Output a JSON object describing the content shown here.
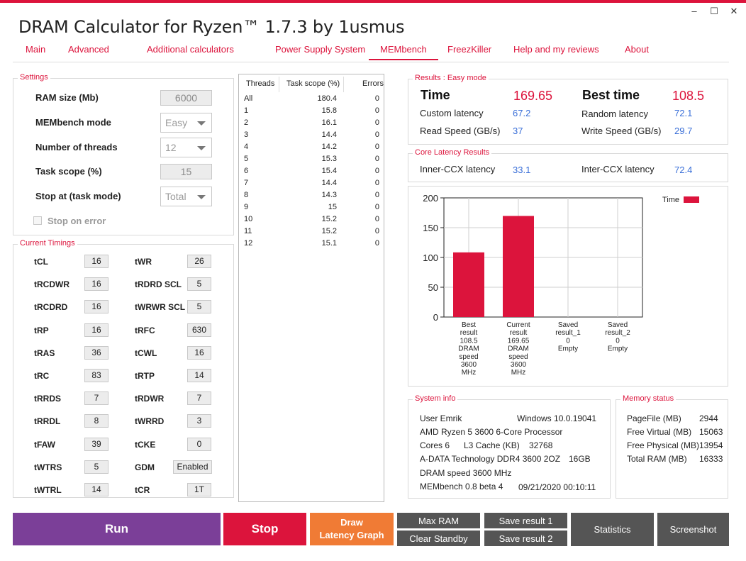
{
  "window": {
    "title": "DRAM Calculator for Ryzen™ 1.7.3 by 1usmus",
    "minimize_glyph": "–",
    "maximize_glyph": "☐",
    "close_glyph": "✕"
  },
  "colors": {
    "accent": "#dc143c",
    "value_blue": "#3a6fd8",
    "run": "#7b3f98",
    "stop": "#dc143c",
    "draw": "#f07b35",
    "dark_button": "#555555"
  },
  "tabs": [
    {
      "label": "Main"
    },
    {
      "label": "Advanced"
    },
    {
      "label": "Additional calculators"
    },
    {
      "label": "Power Supply System"
    },
    {
      "label": "MEMbench"
    },
    {
      "label": "FreezKiller"
    },
    {
      "label": "Help and my reviews"
    },
    {
      "label": "About"
    }
  ],
  "settings": {
    "title": "Settings",
    "ram_size_label": "RAM size (Mb)",
    "ram_size_value": "6000",
    "mode_label": "MEMbench mode",
    "mode_value": "Easy",
    "threads_label": "Number of threads",
    "threads_value": "12",
    "task_scope_label": "Task scope (%)",
    "task_scope_value": "15",
    "stop_at_label": "Stop at (task mode)",
    "stop_at_value": "Total",
    "stop_on_error_label": "Stop on error"
  },
  "timings": {
    "title": "Current Timings",
    "left": [
      {
        "name": "tCL",
        "value": "16"
      },
      {
        "name": "tRCDWR",
        "value": "16"
      },
      {
        "name": "tRCDRD",
        "value": "16"
      },
      {
        "name": "tRP",
        "value": "16"
      },
      {
        "name": "tRAS",
        "value": "36"
      },
      {
        "name": "tRC",
        "value": "83"
      },
      {
        "name": "tRRDS",
        "value": "7"
      },
      {
        "name": "tRRDL",
        "value": "8"
      },
      {
        "name": "tFAW",
        "value": "39"
      },
      {
        "name": "tWTRS",
        "value": "5"
      },
      {
        "name": "tWTRL",
        "value": "14"
      }
    ],
    "right": [
      {
        "name": "tWR",
        "value": "26"
      },
      {
        "name": "tRDRD SCL",
        "value": "5"
      },
      {
        "name": "tWRWR SCL",
        "value": "5"
      },
      {
        "name": "tRFC",
        "value": "630"
      },
      {
        "name": "tCWL",
        "value": "16"
      },
      {
        "name": "tRTP",
        "value": "14"
      },
      {
        "name": "tRDWR",
        "value": "7"
      },
      {
        "name": "tWRRD",
        "value": "3"
      },
      {
        "name": "tCKE",
        "value": "0"
      },
      {
        "name": "GDM",
        "value": "Enabled"
      },
      {
        "name": "tCR",
        "value": "1T"
      }
    ]
  },
  "threads_table": {
    "headers": [
      "Threads",
      "Task scope (%)",
      "Errors"
    ],
    "rows": [
      [
        "All",
        "180.4",
        "0"
      ],
      [
        "1",
        "15.8",
        "0"
      ],
      [
        "2",
        "16.1",
        "0"
      ],
      [
        "3",
        "14.4",
        "0"
      ],
      [
        "4",
        "14.2",
        "0"
      ],
      [
        "5",
        "15.3",
        "0"
      ],
      [
        "6",
        "15.4",
        "0"
      ],
      [
        "7",
        "14.4",
        "0"
      ],
      [
        "8",
        "14.3",
        "0"
      ],
      [
        "9",
        "15",
        "0"
      ],
      [
        "10",
        "15.2",
        "0"
      ],
      [
        "11",
        "15.2",
        "0"
      ],
      [
        "12",
        "15.1",
        "0"
      ]
    ]
  },
  "results": {
    "title": "Results : Easy mode",
    "time_label": "Time",
    "time_value": "169.65",
    "best_time_label": "Best time",
    "best_time_value": "108.5",
    "custom_latency_label": "Custom latency",
    "custom_latency_value": "67.2",
    "random_latency_label": "Random latency",
    "random_latency_value": "72.1",
    "read_speed_label": "Read Speed (GB/s)",
    "read_speed_value": "37",
    "write_speed_label": "Write Speed (GB/s)",
    "write_speed_value": "29.7"
  },
  "core_latency": {
    "title": "Core Latency Results",
    "inner_label": "Inner-CCX latency",
    "inner_value": "33.1",
    "inter_label": "Inter-CCX latency",
    "inter_value": "72.4"
  },
  "chart_data": {
    "type": "bar",
    "title": "",
    "xlabel": "",
    "ylabel": "",
    "ylim": [
      0,
      200
    ],
    "yticks": [
      "200",
      "150",
      "100",
      "50",
      "0"
    ],
    "grid": true,
    "legend_position": "top-right",
    "series": [
      {
        "name": "Time",
        "color": "#dc143c",
        "values": [
          108.5,
          169.65,
          0,
          0
        ]
      }
    ],
    "categories": [
      [
        "Best",
        "result",
        "108.5",
        "DRAM",
        "speed",
        "3600",
        "MHz"
      ],
      [
        "Current",
        "result",
        "169.65",
        "DRAM",
        "speed",
        "3600",
        "MHz"
      ],
      [
        "Saved",
        "result_1",
        "0",
        "Empty"
      ],
      [
        "Saved",
        "result_2",
        "0",
        "Empty"
      ]
    ]
  },
  "system_info": {
    "title": "System info",
    "user": "User Emrik",
    "os": "Windows 10.0.19041",
    "cpu": "AMD Ryzen 5 3600 6-Core Processor",
    "cores": "Cores 6",
    "l3_label": "L3 Cache (KB)",
    "l3_value": "32768",
    "memory_module": "A-DATA Technology DDR4 3600 2OZ",
    "memory_size": "16GB",
    "dram_speed": "DRAM speed 3600 MHz",
    "version": "MEMbench 0.8 beta 4",
    "timestamp": "09/21/2020 00:10:11"
  },
  "memory_status": {
    "title": "Memory status",
    "rows": [
      {
        "label": "PageFile (MB)",
        "value": "2944"
      },
      {
        "label": "Free Virtual (MB)",
        "value": "15063"
      },
      {
        "label": "Free Physical (MB)",
        "value": "13954"
      },
      {
        "label": "Total RAM (MB)",
        "value": "16333"
      }
    ]
  },
  "buttons": {
    "run": "Run",
    "stop": "Stop",
    "draw_line1": "Draw",
    "draw_line2": "Latency Graph",
    "max_ram": "Max RAM",
    "clear_standby": "Clear Standby",
    "save_result_1": "Save result 1",
    "save_result_2": "Save result 2",
    "statistics": "Statistics",
    "screenshot": "Screenshot"
  }
}
